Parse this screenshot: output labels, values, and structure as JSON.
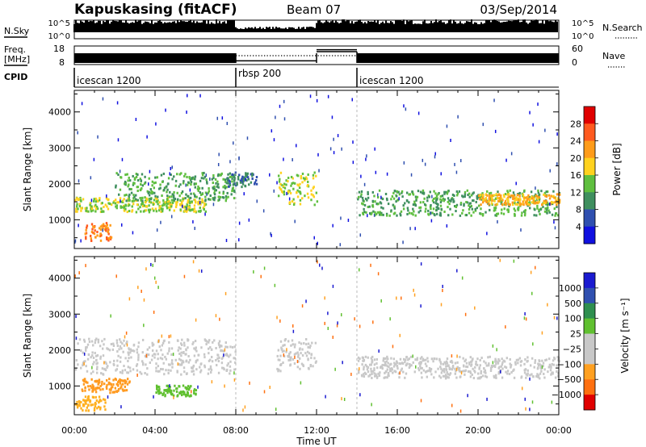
{
  "header": {
    "station": "Kapuskasing (fitACF)",
    "beam": "Beam 07",
    "date": "03/Sep/2014"
  },
  "labels": {
    "nsky": "N.Sky",
    "nsearch": "N.Search",
    "freq_top": "Freq.",
    "freq_unit": "[MHz]",
    "nave": "Nave",
    "cpid": "CPID",
    "time_axis": "Time UT"
  },
  "chart_data": [
    {
      "type": "line",
      "name": "noise",
      "ylabel_left": "N.Sky",
      "ylabel_right": "N.Search",
      "left_ticks": [
        "10^5",
        "10^0"
      ],
      "right_ticks": [
        "10^5",
        "10^0"
      ],
      "x_range_hours": [
        0,
        24
      ],
      "gaps_hours": [
        [
          8.0,
          12.0
        ]
      ]
    },
    {
      "type": "line",
      "name": "freq-nave",
      "left_ticks": [
        "18",
        "8"
      ],
      "right_ticks": [
        "60",
        "0"
      ],
      "freq_mhz": [
        {
          "start": 0,
          "end": 8,
          "value": 12
        },
        {
          "start": 8,
          "end": 12,
          "value": 10
        },
        {
          "start": 12,
          "end": 14,
          "value": 16
        },
        {
          "start": 14,
          "end": 24,
          "value": 12
        }
      ],
      "nave": [
        {
          "start": 8,
          "end": 14,
          "value": 20
        }
      ]
    },
    {
      "type": "table",
      "name": "cpid",
      "segments": [
        {
          "start": 0,
          "end": 8,
          "label": "icescan 1200"
        },
        {
          "start": 8,
          "end": 14,
          "label": "rbsp 200"
        },
        {
          "start": 14,
          "end": 24,
          "label": "icescan 1200"
        }
      ]
    },
    {
      "type": "heatmap",
      "name": "power",
      "ylabel": "Slant Range [km]",
      "yticks": [
        1000,
        2000,
        3000,
        4000
      ],
      "ylim": [
        200,
        4600
      ],
      "xlim_hours": [
        0,
        24
      ],
      "xticks": [
        "00:00",
        "04:00",
        "08:00",
        "12:00",
        "16:00",
        "20:00",
        "00:00"
      ],
      "colorbar_label": "Power [dB]",
      "colorbar_ticks": [
        "28",
        "24",
        "20",
        "16",
        "12",
        "8",
        "4"
      ],
      "colorbar_colors": [
        "#e00000",
        "#ff5a1f",
        "#ff9c1a",
        "#ffd21f",
        "#5fbf3f",
        "#3f8f5f",
        "#2f4faf",
        "#1010e0"
      ],
      "features": [
        {
          "t0": 0.0,
          "t1": 6.5,
          "r0": 1200,
          "r1": 1600,
          "level": 3
        },
        {
          "t0": 0.5,
          "t1": 1.8,
          "r0": 400,
          "r1": 900,
          "level": 5
        },
        {
          "t0": 2.0,
          "t1": 8.0,
          "r0": 1500,
          "r1": 2300,
          "level": 2
        },
        {
          "t0": 7.5,
          "t1": 9.0,
          "r0": 1900,
          "r1": 2300,
          "level": 1
        },
        {
          "t0": 10.0,
          "t1": 12.0,
          "r0": 1400,
          "r1": 2300,
          "level": 3
        },
        {
          "t0": 14.0,
          "t1": 24.0,
          "r0": 1100,
          "r1": 1800,
          "level": 2
        },
        {
          "t0": 20.0,
          "t1": 24.0,
          "r0": 1400,
          "r1": 1700,
          "level": 4
        }
      ]
    },
    {
      "type": "heatmap",
      "name": "velocity",
      "ylabel": "Slant Range [km]",
      "yticks": [
        1000,
        2000,
        3000,
        4000
      ],
      "ylim": [
        200,
        4600
      ],
      "xlim_hours": [
        0,
        24
      ],
      "xticks": [
        "00:00",
        "04:00",
        "08:00",
        "12:00",
        "16:00",
        "20:00",
        "00:00"
      ],
      "xlabel": "Time UT",
      "colorbar_label": "Velocity [m s⁻¹]",
      "colorbar_ticks": [
        "1000",
        "500",
        "100",
        "25",
        "−25",
        "−100",
        "−500",
        "−1000"
      ],
      "colorbar_colors": [
        "#1a1ad0",
        "#3050b0",
        "#2f8f4f",
        "#60c030",
        "#c8c8c8",
        "#c8c8c8",
        "#ffa020",
        "#ff7010",
        "#e00000"
      ],
      "features": [
        {
          "t0": 0.0,
          "t1": 8.0,
          "r0": 1300,
          "r1": 2300,
          "color": "#c8c8c8"
        },
        {
          "t0": 0.3,
          "t1": 2.7,
          "r0": 800,
          "r1": 1200,
          "color": "#ff9a20"
        },
        {
          "t0": 0.0,
          "t1": 1.5,
          "r0": 300,
          "r1": 700,
          "color": "#ffb020"
        },
        {
          "t0": 4.0,
          "t1": 6.0,
          "r0": 700,
          "r1": 1000,
          "color": "#60c030"
        },
        {
          "t0": 10.0,
          "t1": 12.0,
          "r0": 1400,
          "r1": 2300,
          "color": "#c8c8c8"
        },
        {
          "t0": 14.0,
          "t1": 24.0,
          "r0": 1200,
          "r1": 1800,
          "color": "#c8c8c8"
        }
      ]
    }
  ]
}
